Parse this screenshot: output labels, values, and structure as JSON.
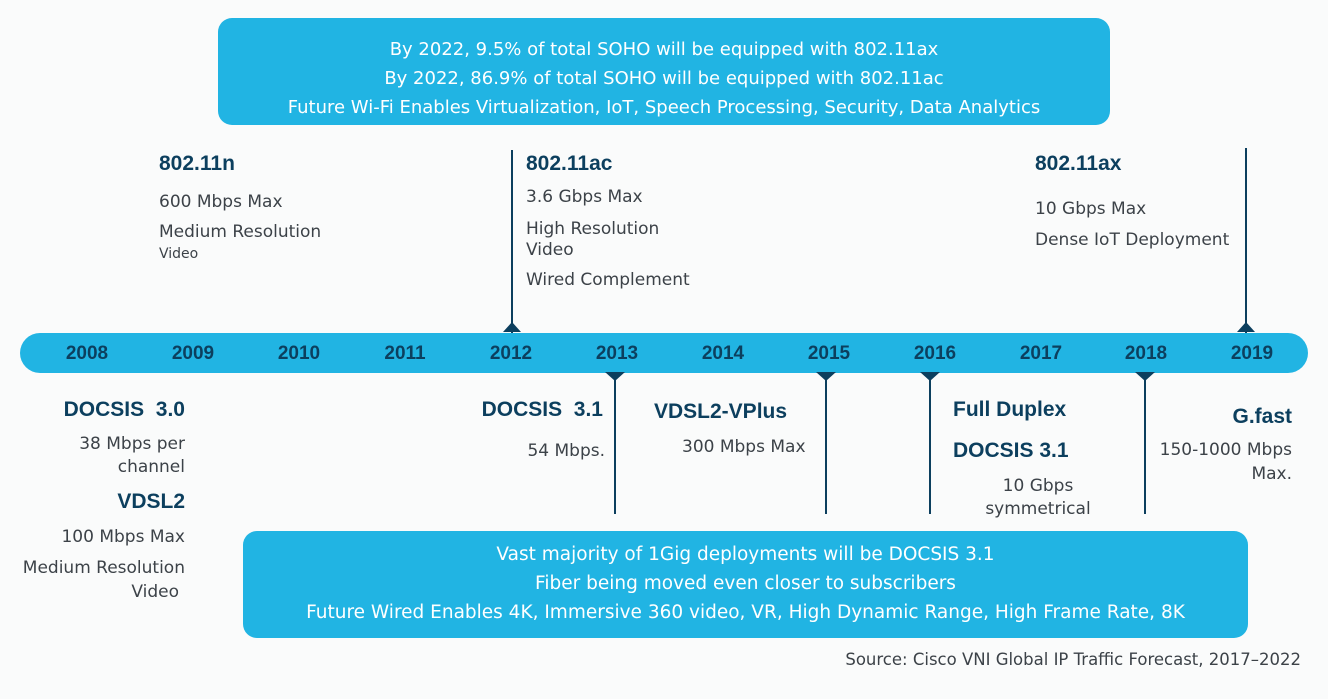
{
  "top_callout": {
    "lines": [
      "By 2022, 9.5% of total SOHO will be equipped with 802.11ax",
      "By 2022, 86.9% of total SOHO will be equipped with 802.11ac",
      "Future Wi-Fi Enables Virtualization, IoT, Speech Processing, Security, Data Analytics"
    ]
  },
  "bottom_callout": {
    "lines": [
      "Vast majority of 1Gig deployments will be DOCSIS 3.1",
      "Fiber being moved even closer to subscribers",
      "Future Wired Enables 4K, Immersive 360 video, VR, High Dynamic Range, High Frame Rate, 8K"
    ]
  },
  "years": [
    "2008",
    "2009",
    "2010",
    "2011",
    "2012",
    "2013",
    "2014",
    "2015",
    "2016",
    "2017",
    "2018",
    "2019"
  ],
  "wifi": {
    "n": {
      "title": "802.11n",
      "line1": "600 Mbps Max",
      "line2": "Medium Resolution",
      "line3": "Video"
    },
    "ac": {
      "title": "802.11ac",
      "line1": "3.6 Gbps Max",
      "line2": "High Resolution",
      "line3": "Video",
      "line4": "Wired Complement"
    },
    "ax": {
      "title": "802.11ax",
      "line1": "10 Gbps Max",
      "line2": "Dense IoT Deployment"
    }
  },
  "wired": {
    "docsis30": {
      "title": "DOCSIS  3.0",
      "line1": "38 Mbps per",
      "line2": "channel"
    },
    "vdsl2": {
      "title": "VDSL2",
      "line1": "100 Mbps Max",
      "line2": "Medium Resolution",
      "line3": "Video"
    },
    "docsis31": {
      "title": "DOCSIS  3.1",
      "line1": "54 Mbps."
    },
    "vplus": {
      "title": "VDSL2-VPlus",
      "line1": "300 Mbps Max"
    },
    "fullduplex": {
      "title": "Full Duplex",
      "title2": "DOCSIS 3.1",
      "line1": "10 Gbps",
      "line2": "symmetrical"
    },
    "gfast": {
      "title": "G.fast",
      "line1": "150-1000 Mbps",
      "line2": "Max."
    }
  },
  "source": "Source: Cisco VNI Global IP Traffic Forecast, 2017–2022"
}
